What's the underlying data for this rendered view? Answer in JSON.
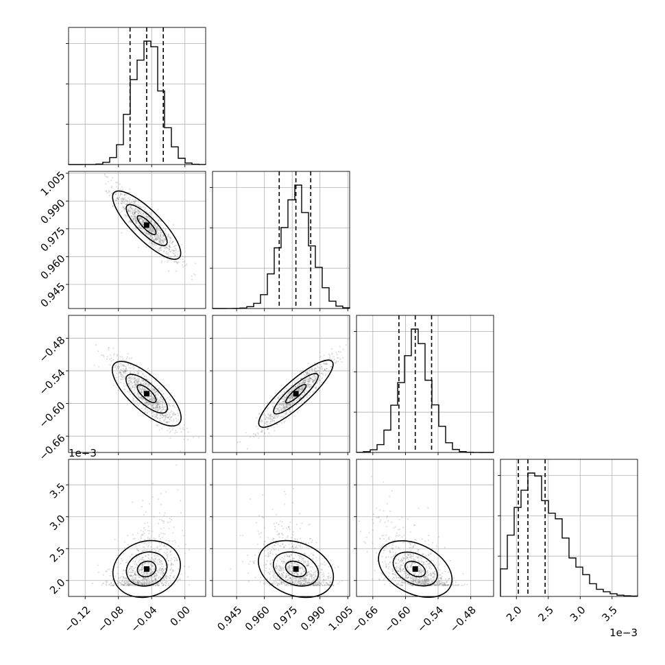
{
  "chart_data": {
    "type": "scatter",
    "kind": "corner-plot",
    "grid": true,
    "parameters": [
      {
        "range": [
          -0.14,
          0.025
        ],
        "ticks": [
          -0.12,
          -0.08,
          -0.04,
          0.0
        ],
        "tick_labels": [
          "−0.12",
          "−0.08",
          "−0.04",
          "0.00"
        ],
        "mean": -0.046,
        "sd": 0.017,
        "quantiles": [
          -0.066,
          -0.046,
          -0.026
        ]
      },
      {
        "range": [
          0.932,
          1.006
        ],
        "ticks": [
          0.945,
          0.96,
          0.975,
          0.99,
          1.005
        ],
        "tick_labels": [
          "0.945",
          "0.960",
          "0.975",
          "0.990",
          "1.005"
        ],
        "mean": 0.977,
        "sd": 0.0085,
        "quantiles": [
          0.968,
          0.977,
          0.985
        ]
      },
      {
        "range": [
          -0.69,
          -0.438
        ],
        "ticks": [
          -0.66,
          -0.6,
          -0.54,
          -0.48
        ],
        "tick_labels": [
          "−0.66",
          "−0.60",
          "−0.54",
          "−0.48"
        ],
        "mean": -0.582,
        "sd": 0.028,
        "quantiles": [
          -0.612,
          -0.582,
          -0.552
        ]
      },
      {
        "range": [
          0.00175,
          0.0039
        ],
        "ticks": [
          0.002,
          0.0025,
          0.003,
          0.0035
        ],
        "tick_labels": [
          "2.0",
          "2.5",
          "3.0",
          "3.5"
        ],
        "offset_label": "1e−3",
        "mean": 0.00218,
        "sd": 0.00022,
        "quantiles": [
          0.00203,
          0.00218,
          0.00245
        ]
      }
    ],
    "pairs": [
      {
        "x": 0,
        "y": 1,
        "rho": -0.9
      },
      {
        "x": 0,
        "y": 2,
        "rho": -0.85
      },
      {
        "x": 1,
        "y": 2,
        "rho": 0.92
      },
      {
        "x": 0,
        "y": 3,
        "rho": 0.35
      },
      {
        "x": 1,
        "y": 3,
        "rho": -0.45
      },
      {
        "x": 2,
        "y": 3,
        "rho": -0.55
      }
    ]
  }
}
